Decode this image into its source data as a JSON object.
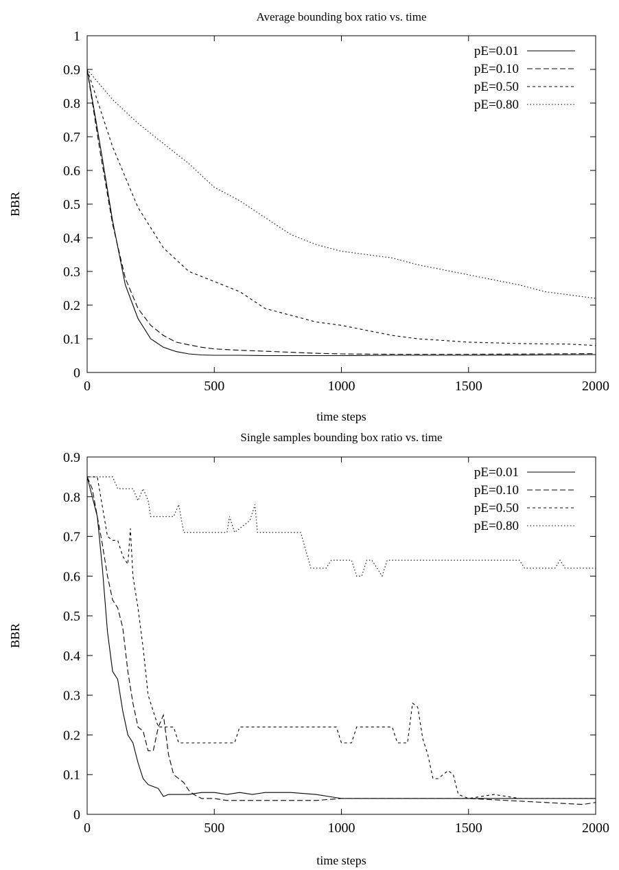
{
  "chart_data": [
    {
      "type": "line",
      "title": "Average bounding box ratio vs. time",
      "xlabel": "time steps",
      "ylabel": "BBR",
      "xlim": [
        0,
        2000
      ],
      "ylim": [
        0,
        1
      ],
      "xticks": [
        "0",
        "500",
        "1000",
        "1500",
        "2000"
      ],
      "yticks": [
        "0",
        "0.1",
        "0.2",
        "0.3",
        "0.4",
        "0.5",
        "0.6",
        "0.7",
        "0.8",
        "0.9",
        "1"
      ],
      "legend_position": "top-right",
      "grid": false,
      "series": [
        {
          "name": "pE=0.01",
          "dash": "solid",
          "x": [
            0,
            50,
            100,
            150,
            200,
            250,
            300,
            350,
            400,
            450,
            500,
            600,
            700,
            800,
            900,
            1000,
            1200,
            1500,
            1800,
            2000
          ],
          "y": [
            0.9,
            0.68,
            0.45,
            0.26,
            0.16,
            0.1,
            0.075,
            0.062,
            0.055,
            0.052,
            0.051,
            0.051,
            0.05,
            0.05,
            0.05,
            0.05,
            0.051,
            0.051,
            0.052,
            0.053
          ]
        },
        {
          "name": "pE=0.10",
          "dash": "dashed",
          "x": [
            0,
            50,
            100,
            150,
            200,
            250,
            300,
            350,
            400,
            450,
            500,
            600,
            700,
            800,
            900,
            1000,
            1200,
            1500,
            1800,
            2000
          ],
          "y": [
            0.9,
            0.66,
            0.44,
            0.28,
            0.19,
            0.14,
            0.11,
            0.09,
            0.082,
            0.075,
            0.07,
            0.066,
            0.063,
            0.06,
            0.057,
            0.055,
            0.054,
            0.054,
            0.055,
            0.056
          ]
        },
        {
          "name": "pE=0.50",
          "dash": "short-dashed",
          "x": [
            0,
            100,
            200,
            300,
            400,
            500,
            600,
            700,
            800,
            900,
            1000,
            1100,
            1200,
            1300,
            1400,
            1500,
            1600,
            1700,
            1800,
            1900,
            2000
          ],
          "y": [
            0.9,
            0.67,
            0.49,
            0.37,
            0.3,
            0.27,
            0.24,
            0.19,
            0.17,
            0.15,
            0.14,
            0.125,
            0.11,
            0.1,
            0.095,
            0.09,
            0.088,
            0.086,
            0.085,
            0.084,
            0.08
          ]
        },
        {
          "name": "pE=0.80",
          "dash": "dotted",
          "x": [
            0,
            100,
            200,
            300,
            400,
            500,
            600,
            700,
            800,
            900,
            1000,
            1100,
            1200,
            1300,
            1400,
            1500,
            1600,
            1700,
            1800,
            1900,
            2000
          ],
          "y": [
            0.9,
            0.81,
            0.74,
            0.68,
            0.62,
            0.55,
            0.51,
            0.46,
            0.41,
            0.38,
            0.36,
            0.35,
            0.34,
            0.32,
            0.305,
            0.29,
            0.275,
            0.26,
            0.24,
            0.23,
            0.22
          ]
        }
      ]
    },
    {
      "type": "line",
      "title": "Single samples bounding box ratio vs. time",
      "xlabel": "time steps",
      "ylabel": "BBR",
      "xlim": [
        0,
        2000
      ],
      "ylim": [
        0,
        0.9
      ],
      "xticks": [
        "0",
        "500",
        "1000",
        "1500",
        "2000"
      ],
      "yticks": [
        "0",
        "0.1",
        "0.2",
        "0.3",
        "0.4",
        "0.5",
        "0.6",
        "0.7",
        "0.8",
        "0.9"
      ],
      "legend_position": "top-right",
      "grid": false,
      "series": [
        {
          "name": "pE=0.01",
          "dash": "solid",
          "x": [
            0,
            20,
            40,
            60,
            80,
            100,
            120,
            140,
            160,
            180,
            200,
            220,
            240,
            260,
            280,
            300,
            320,
            400,
            450,
            500,
            550,
            600,
            650,
            700,
            800,
            900,
            950,
            1000,
            1050,
            1100,
            1500,
            2000
          ],
          "y": [
            0.85,
            0.8,
            0.75,
            0.62,
            0.46,
            0.36,
            0.34,
            0.26,
            0.2,
            0.18,
            0.13,
            0.09,
            0.075,
            0.07,
            0.065,
            0.045,
            0.05,
            0.05,
            0.055,
            0.055,
            0.05,
            0.055,
            0.05,
            0.055,
            0.055,
            0.05,
            0.045,
            0.04,
            0.04,
            0.04,
            0.04,
            0.04
          ]
        },
        {
          "name": "pE=0.10",
          "dash": "dashed",
          "x": [
            0,
            20,
            40,
            60,
            80,
            100,
            120,
            140,
            160,
            180,
            200,
            220,
            240,
            260,
            280,
            300,
            320,
            340,
            360,
            380,
            400,
            420,
            450,
            500,
            550,
            600,
            700,
            800,
            900,
            1000,
            1100,
            1500,
            1800,
            1950,
            2000
          ],
          "y": [
            0.85,
            0.82,
            0.75,
            0.68,
            0.6,
            0.54,
            0.52,
            0.47,
            0.36,
            0.28,
            0.22,
            0.21,
            0.16,
            0.16,
            0.22,
            0.25,
            0.15,
            0.1,
            0.09,
            0.08,
            0.06,
            0.05,
            0.04,
            0.04,
            0.035,
            0.035,
            0.035,
            0.035,
            0.035,
            0.04,
            0.04,
            0.04,
            0.03,
            0.025,
            0.03
          ]
        },
        {
          "name": "pE=0.50",
          "dash": "short-dashed",
          "x": [
            0,
            40,
            80,
            100,
            120,
            140,
            160,
            170,
            180,
            200,
            220,
            240,
            260,
            280,
            300,
            320,
            340,
            360,
            580,
            600,
            980,
            1000,
            1040,
            1060,
            1200,
            1220,
            1260,
            1280,
            1300,
            1320,
            1340,
            1360,
            1380,
            1420,
            1440,
            1460,
            1500,
            1600,
            1700,
            2000
          ],
          "y": [
            0.85,
            0.85,
            0.7,
            0.69,
            0.69,
            0.65,
            0.63,
            0.72,
            0.6,
            0.52,
            0.42,
            0.3,
            0.26,
            0.22,
            0.22,
            0.22,
            0.22,
            0.18,
            0.18,
            0.22,
            0.22,
            0.18,
            0.18,
            0.22,
            0.22,
            0.18,
            0.18,
            0.28,
            0.27,
            0.19,
            0.15,
            0.09,
            0.09,
            0.11,
            0.1,
            0.05,
            0.04,
            0.05,
            0.04,
            0.04
          ]
        },
        {
          "name": "pE=0.80",
          "dash": "dotted",
          "x": [
            0,
            100,
            120,
            180,
            200,
            220,
            240,
            250,
            340,
            360,
            380,
            550,
            560,
            580,
            640,
            660,
            670,
            840,
            880,
            940,
            960,
            1040,
            1060,
            1080,
            1100,
            1120,
            1160,
            1180,
            1700,
            1720,
            1840,
            1860,
            1880,
            2000
          ],
          "y": [
            0.85,
            0.85,
            0.82,
            0.82,
            0.79,
            0.82,
            0.79,
            0.75,
            0.75,
            0.78,
            0.71,
            0.71,
            0.75,
            0.71,
            0.74,
            0.78,
            0.71,
            0.71,
            0.62,
            0.62,
            0.64,
            0.64,
            0.6,
            0.6,
            0.64,
            0.64,
            0.6,
            0.64,
            0.64,
            0.62,
            0.62,
            0.64,
            0.62,
            0.62
          ]
        }
      ]
    }
  ]
}
